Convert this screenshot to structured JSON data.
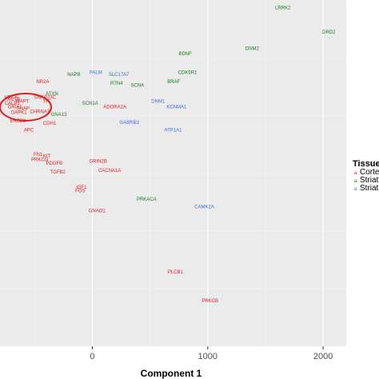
{
  "chart_data": {
    "type": "scatter",
    "xlabel": "Component 1",
    "ylabel": "",
    "xlim": [
      -800,
      2200
    ],
    "ylim": [
      -1200,
      300
    ],
    "x_ticks": [
      0,
      1000,
      2000
    ],
    "x_tick_labels": [
      "0",
      "1000",
      "2000"
    ],
    "grid": true,
    "legend": {
      "title": "Tissue",
      "position": "right",
      "entries": [
        {
          "label": "Cortex",
          "color": "#e41a1c"
        },
        {
          "label": "Striatum",
          "color": "#1a7a1a"
        },
        {
          "label": "Striatum",
          "color": "#3b6fd8"
        }
      ]
    },
    "series": [
      {
        "name": "Cortex",
        "color": "#e41a1c",
        "points": [
          {
            "label": "HPCA",
            "x": -705,
            "y": -128
          },
          {
            "label": "ACTB",
            "x": -680,
            "y": -137
          },
          {
            "label": "MAPT",
            "x": -605,
            "y": -145
          },
          {
            "label": "CALB1",
            "x": -695,
            "y": -153
          },
          {
            "label": "GRIA1",
            "x": -670,
            "y": -169
          },
          {
            "label": "SNAP",
            "x": -600,
            "y": -177
          },
          {
            "label": "DAPK1",
            "x": -635,
            "y": -194
          },
          {
            "label": "CHRNA7",
            "x": -455,
            "y": -191
          },
          {
            "label": "NR2A",
            "x": -430,
            "y": -60
          },
          {
            "label": "SNAP23C",
            "x": -410,
            "y": -128
          },
          {
            "label": "TH",
            "x": -400,
            "y": -145
          },
          {
            "label": "ADORA2A",
            "x": 195,
            "y": -169
          },
          {
            "label": "CDH1",
            "x": -370,
            "y": -241
          },
          {
            "label": "ERBB3",
            "x": -645,
            "y": -230
          },
          {
            "label": "APC",
            "x": -550,
            "y": -270
          },
          {
            "label": "FN1",
            "x": -470,
            "y": -375
          },
          {
            "label": "KIT",
            "x": -395,
            "y": -382
          },
          {
            "label": "PRKCG",
            "x": -455,
            "y": -398
          },
          {
            "label": "PDGFB",
            "x": -330,
            "y": -413
          },
          {
            "label": "TGFB2",
            "x": -300,
            "y": -452
          },
          {
            "label": "GRIN2B",
            "x": 50,
            "y": -405
          },
          {
            "label": "CACNA1A",
            "x": 150,
            "y": -444
          },
          {
            "label": "IGF1",
            "x": -95,
            "y": -518
          },
          {
            "label": "FOS",
            "x": -105,
            "y": -533
          },
          {
            "label": "GNAO1",
            "x": 40,
            "y": -619
          },
          {
            "label": "PLCB1",
            "x": 720,
            "y": -884
          },
          {
            "label": "PRKCB",
            "x": 1020,
            "y": -1010
          }
        ]
      },
      {
        "name": "Striatum",
        "color": "#1a7a1a",
        "points": [
          {
            "label": "LRRK2",
            "x": 1650,
            "y": 260
          },
          {
            "label": "DRD2",
            "x": 2050,
            "y": 154
          },
          {
            "label": "DNM2",
            "x": 1385,
            "y": 84
          },
          {
            "label": "BDNF",
            "x": 805,
            "y": 61
          },
          {
            "label": "CDK5R1",
            "x": 825,
            "y": -21
          },
          {
            "label": "BRAF",
            "x": 705,
            "y": -60
          },
          {
            "label": "NAPB",
            "x": -160,
            "y": -29
          },
          {
            "label": "RTN4",
            "x": 210,
            "y": -68
          },
          {
            "label": "SCNA",
            "x": 390,
            "y": -76
          },
          {
            "label": "ATXN",
            "x": -350,
            "y": -113
          },
          {
            "label": "SCN1A",
            "x": -20,
            "y": -153
          },
          {
            "label": "GNA13",
            "x": -290,
            "y": -202
          },
          {
            "label": "PRKACA",
            "x": 470,
            "y": -569
          }
        ]
      },
      {
        "name": "Striatum",
        "color": "#3b6fd8",
        "points": [
          {
            "label": "PALM",
            "x": 30,
            "y": -21
          },
          {
            "label": "SLC17A7",
            "x": 230,
            "y": -29
          },
          {
            "label": "DNM1",
            "x": 570,
            "y": -145
          },
          {
            "label": "KCNMA1",
            "x": 730,
            "y": -169
          },
          {
            "label": "GABRB3",
            "x": 320,
            "y": -237
          },
          {
            "label": "ATP1A1",
            "x": 700,
            "y": -269
          },
          {
            "label": "CAMK2A",
            "x": 970,
            "y": -602
          }
        ]
      }
    ]
  }
}
